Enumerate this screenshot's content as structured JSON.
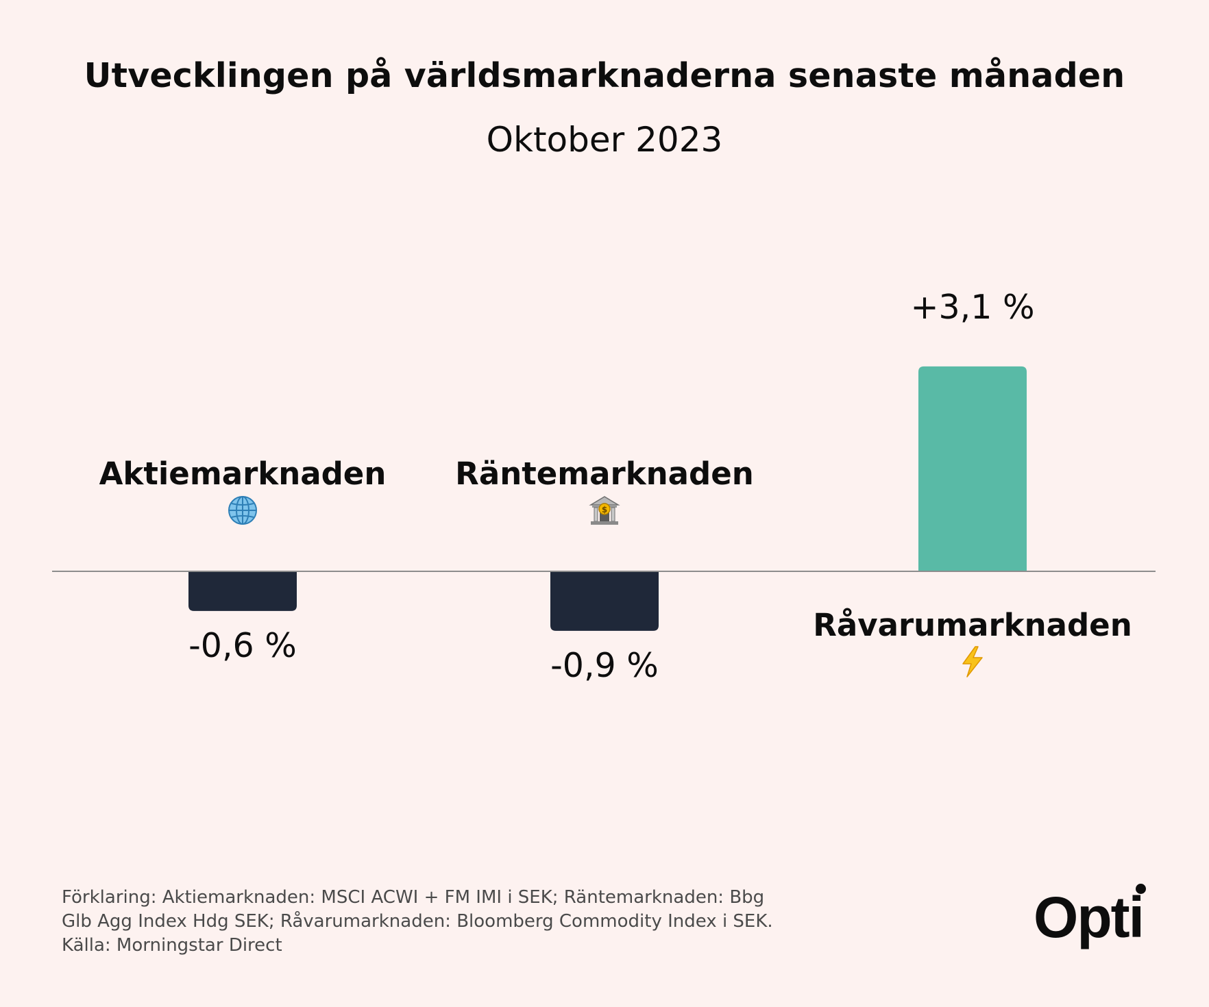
{
  "chart_data": {
    "type": "bar",
    "title": "Utvecklingen på världsmarknaderna senaste månaden",
    "subtitle": "Oktober 2023",
    "categories": [
      "Aktiemarknaden",
      "Räntemarknaden",
      "Råvarumarknaden"
    ],
    "values": [
      -0.6,
      -0.9,
      3.1
    ],
    "value_labels": [
      "-0,6 %",
      "-0,9 %",
      "+3,1 %"
    ],
    "icons": [
      "globe-icon",
      "bank-icon",
      "lightning-icon"
    ],
    "ylim": [
      -0.9,
      3.1
    ],
    "colors": {
      "positive": "#59baa6",
      "negative": "#1f2839",
      "axis": "#8d8d8d",
      "background": "#fdf2f0"
    },
    "xlabel": "",
    "ylabel": "",
    "grid": false
  },
  "footnote": {
    "line1": "Förklaring: Aktiemarknaden: MSCI ACWI + FM IMI i SEK; Räntemarknaden: Bbg",
    "line2": "Glb Agg Index Hdg SEK; Råvarumarknaden: Bloomberg Commodity Index i SEK.",
    "line3": "Källa: Morningstar Direct"
  },
  "brand": {
    "logo_text": "Opti"
  }
}
